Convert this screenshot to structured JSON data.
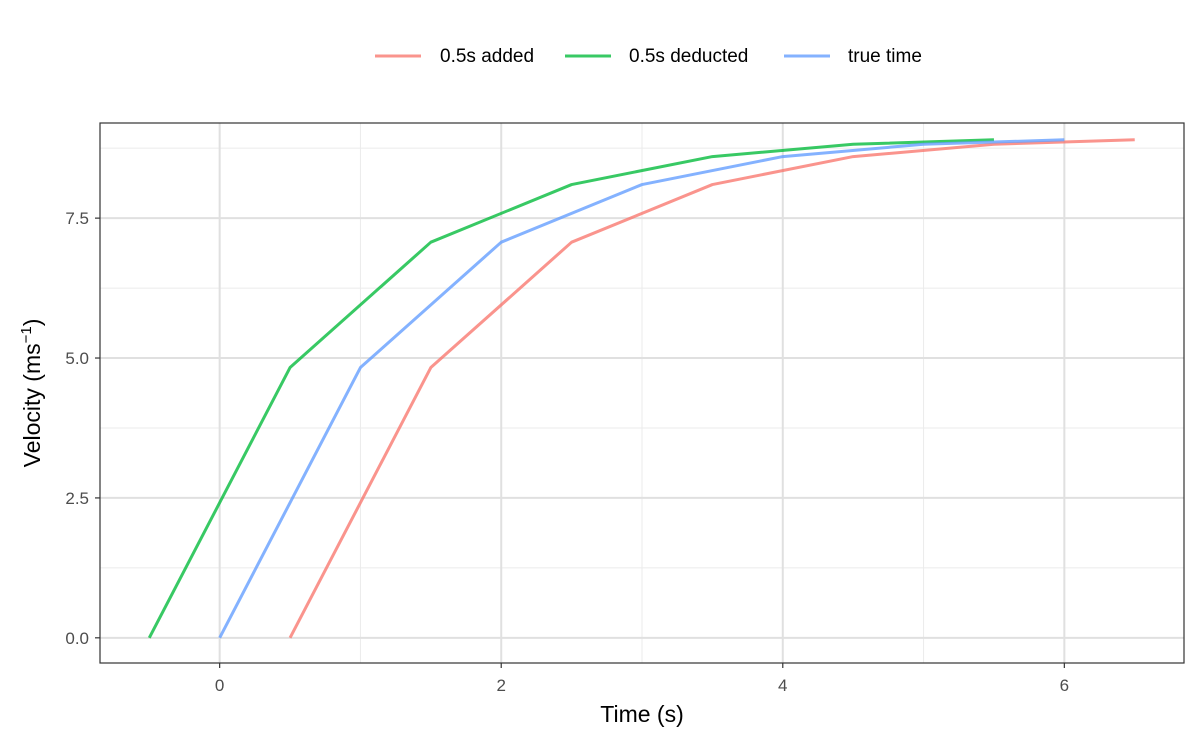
{
  "chart_data": {
    "type": "line",
    "xlabel": "Time (s)",
    "ylabel": {
      "prefix": "Velocity (ms",
      "superscript": "−1",
      "suffix": ")"
    },
    "xlim": [
      -0.85,
      6.85
    ],
    "ylim": [
      -0.45,
      9.2
    ],
    "x_ticks": [
      0,
      2,
      4,
      6
    ],
    "x_tick_labels": [
      "0",
      "2",
      "4",
      "6"
    ],
    "y_ticks": [
      0,
      2.5,
      5,
      7.5
    ],
    "y_tick_labels": [
      "0.0",
      "2.5",
      "5.0",
      "7.5"
    ],
    "grid": true,
    "legend_position": "top",
    "series": [
      {
        "name": "0.5s added",
        "color": "#F8766D",
        "x": [
          0.5,
          1.5,
          2.5,
          3.5,
          4.5,
          5.5,
          6.5
        ],
        "y": [
          0,
          4.83,
          7.07,
          8.1,
          8.6,
          8.82,
          8.9
        ]
      },
      {
        "name": "0.5s deducted",
        "color": "#00BA38",
        "x": [
          -0.5,
          0.5,
          1.5,
          2.5,
          3.5,
          4.5,
          5.5
        ],
        "y": [
          0,
          4.83,
          7.07,
          8.1,
          8.6,
          8.82,
          8.9
        ]
      },
      {
        "name": "true time",
        "color": "#619CFF",
        "x": [
          0,
          1,
          2,
          3,
          4,
          5,
          6
        ],
        "y": [
          0,
          4.83,
          7.07,
          8.1,
          8.6,
          8.82,
          8.9
        ]
      }
    ]
  }
}
